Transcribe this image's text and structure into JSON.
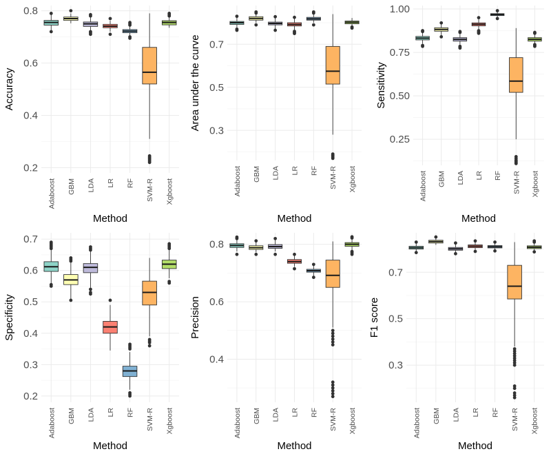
{
  "chart_data": [
    {
      "type": "boxplot",
      "ylabel": "Accuracy",
      "xlabel": "Method",
      "ylim": [
        0.18,
        0.82
      ],
      "yticks": [
        0.2,
        0.4,
        0.6,
        0.8
      ],
      "ytick_labels": [
        "0.2",
        "0.4",
        "0.6",
        "0.8"
      ],
      "categories": [
        "Adaboost",
        "GBM",
        "LDA",
        "LR",
        "RF",
        "SVM-R",
        "Xgboost"
      ],
      "series": [
        {
          "name": "Adaboost",
          "min": 0.725,
          "q1": 0.745,
          "median": 0.755,
          "q3": 0.763,
          "max": 0.785,
          "outliers": [
            0.72,
            0.79
          ]
        },
        {
          "name": "GBM",
          "min": 0.752,
          "q1": 0.763,
          "median": 0.77,
          "q3": 0.776,
          "max": 0.79,
          "outliers": [
            0.8
          ]
        },
        {
          "name": "LDA",
          "min": 0.722,
          "q1": 0.74,
          "median": 0.75,
          "q3": 0.757,
          "max": 0.776,
          "outliers": [
            0.71,
            0.715,
            0.72,
            0.78,
            0.785
          ]
        },
        {
          "name": "LR",
          "min": 0.72,
          "q1": 0.735,
          "median": 0.741,
          "q3": 0.748,
          "max": 0.762,
          "outliers": [
            0.71,
            0.77
          ]
        },
        {
          "name": "RF",
          "min": 0.705,
          "q1": 0.716,
          "median": 0.722,
          "q3": 0.728,
          "max": 0.742,
          "outliers": [
            0.695,
            0.7,
            0.745,
            0.75,
            0.755
          ]
        },
        {
          "name": "SVM-R",
          "min": 0.31,
          "q1": 0.52,
          "median": 0.565,
          "q3": 0.66,
          "max": 0.79,
          "outliers": [
            0.22,
            0.225,
            0.23,
            0.235,
            0.24,
            0.245
          ]
        },
        {
          "name": "Xgboost",
          "min": 0.735,
          "q1": 0.746,
          "median": 0.755,
          "q3": 0.762,
          "max": 0.778,
          "outliers": [
            0.78,
            0.785,
            0.79
          ]
        }
      ]
    },
    {
      "type": "boxplot",
      "ylabel": "Area under the curve",
      "xlabel": "Method",
      "ylim": [
        0.16,
        0.88
      ],
      "yticks": [
        0.3,
        0.5,
        0.7
      ],
      "ytick_labels": [
        "0.3",
        "0.5",
        "0.7"
      ],
      "categories": [
        "Adaboost",
        "GBM",
        "LDA",
        "LR",
        "RF",
        "SVM-R",
        "Xgboost"
      ],
      "series": [
        {
          "name": "Adaboost",
          "min": 0.775,
          "q1": 0.792,
          "median": 0.8,
          "q3": 0.806,
          "max": 0.825,
          "outliers": [
            0.765,
            0.77,
            0.83
          ]
        },
        {
          "name": "GBM",
          "min": 0.8,
          "q1": 0.812,
          "median": 0.82,
          "q3": 0.828,
          "max": 0.84,
          "outliers": [
            0.79,
            0.845,
            0.85
          ]
        },
        {
          "name": "LDA",
          "min": 0.772,
          "q1": 0.79,
          "median": 0.797,
          "q3": 0.803,
          "max": 0.822,
          "outliers": [
            0.765,
            0.828
          ]
        },
        {
          "name": "LR",
          "min": 0.768,
          "q1": 0.785,
          "median": 0.792,
          "q3": 0.8,
          "max": 0.818,
          "outliers": [
            0.75,
            0.755,
            0.76,
            0.825
          ]
        },
        {
          "name": "RF",
          "min": 0.8,
          "q1": 0.812,
          "median": 0.818,
          "q3": 0.825,
          "max": 0.84,
          "outliers": [
            0.79,
            0.845,
            0.85
          ]
        },
        {
          "name": "SVM-R",
          "min": 0.28,
          "q1": 0.515,
          "median": 0.575,
          "q3": 0.69,
          "max": 0.84,
          "outliers": [
            0.17,
            0.175,
            0.18,
            0.185,
            0.19
          ]
        },
        {
          "name": "Xgboost",
          "min": 0.785,
          "q1": 0.795,
          "median": 0.802,
          "q3": 0.808,
          "max": 0.822,
          "outliers": [
            0.775,
            0.78
          ]
        }
      ]
    },
    {
      "type": "boxplot",
      "ylabel": "Sensitivity",
      "xlabel": "Method",
      "ylim": [
        0.1,
        1.02
      ],
      "yticks": [
        0.25,
        0.5,
        0.75,
        1.0
      ],
      "ytick_labels": [
        "0.25",
        "0.50",
        "0.75",
        "1.00"
      ],
      "categories": [
        "Adaboost",
        "GBM",
        "LDA",
        "LR",
        "RF",
        "SVM-R",
        "Xgboost"
      ],
      "series": [
        {
          "name": "Adaboost",
          "min": 0.8,
          "q1": 0.822,
          "median": 0.832,
          "q3": 0.842,
          "max": 0.865,
          "outliers": [
            0.785,
            0.79,
            0.87,
            0.875
          ]
        },
        {
          "name": "GBM",
          "min": 0.85,
          "q1": 0.872,
          "median": 0.882,
          "q3": 0.892,
          "max": 0.915,
          "outliers": [
            0.84,
            0.92
          ]
        },
        {
          "name": "LDA",
          "min": 0.795,
          "q1": 0.815,
          "median": 0.825,
          "q3": 0.835,
          "max": 0.86,
          "outliers": [
            0.775,
            0.78,
            0.785,
            0.865,
            0.87
          ]
        },
        {
          "name": "LR",
          "min": 0.885,
          "q1": 0.903,
          "median": 0.912,
          "q3": 0.92,
          "max": 0.94,
          "outliers": [
            0.86,
            0.865,
            0.87,
            0.875,
            0.95
          ]
        },
        {
          "name": "RF",
          "min": 0.955,
          "q1": 0.962,
          "median": 0.968,
          "q3": 0.973,
          "max": 0.985,
          "outliers": [
            0.945,
            0.99
          ]
        },
        {
          "name": "SVM-R",
          "min": 0.25,
          "q1": 0.52,
          "median": 0.585,
          "q3": 0.72,
          "max": 0.89,
          "outliers": [
            0.11,
            0.115,
            0.12,
            0.125,
            0.13,
            0.14,
            0.15
          ]
        },
        {
          "name": "Xgboost",
          "min": 0.8,
          "q1": 0.815,
          "median": 0.825,
          "q3": 0.835,
          "max": 0.855,
          "outliers": [
            0.785,
            0.79,
            0.795,
            0.86,
            0.865
          ]
        }
      ]
    },
    {
      "type": "boxplot",
      "ylabel": "Specificity",
      "xlabel": "Method",
      "ylim": [
        0.18,
        0.72
      ],
      "yticks": [
        0.2,
        0.3,
        0.4,
        0.5,
        0.6,
        0.7
      ],
      "ytick_labels": [
        "0.2",
        "0.3",
        "0.4",
        "0.5",
        "0.6",
        "0.7"
      ],
      "categories": [
        "Adaboost",
        "GBM",
        "LDA",
        "LR",
        "RF",
        "SVM-R",
        "Xgboost"
      ],
      "series": [
        {
          "name": "Adaboost",
          "min": 0.56,
          "q1": 0.597,
          "median": 0.612,
          "q3": 0.628,
          "max": 0.665,
          "outliers": [
            0.55,
            0.555,
            0.67,
            0.675,
            0.68,
            0.685,
            0.69
          ]
        },
        {
          "name": "GBM",
          "min": 0.51,
          "q1": 0.555,
          "median": 0.57,
          "q3": 0.587,
          "max": 0.625,
          "outliers": [
            0.505,
            0.63,
            0.635,
            0.64
          ]
        },
        {
          "name": "LDA",
          "min": 0.545,
          "q1": 0.593,
          "median": 0.61,
          "q3": 0.622,
          "max": 0.66,
          "outliers": [
            0.525,
            0.53,
            0.54,
            0.665,
            0.67,
            0.675
          ]
        },
        {
          "name": "LR",
          "min": 0.345,
          "q1": 0.4,
          "median": 0.42,
          "q3": 0.438,
          "max": 0.49,
          "outliers": [
            0.505
          ]
        },
        {
          "name": "RF",
          "min": 0.22,
          "q1": 0.262,
          "median": 0.28,
          "q3": 0.295,
          "max": 0.34,
          "outliers": [
            0.2,
            0.205,
            0.21,
            0.35,
            0.355,
            0.36,
            0.365
          ]
        },
        {
          "name": "SVM-R",
          "min": 0.39,
          "q1": 0.49,
          "median": 0.53,
          "q3": 0.566,
          "max": 0.64,
          "outliers": [
            0.36,
            0.37,
            0.375,
            0.38
          ]
        },
        {
          "name": "Xgboost",
          "min": 0.575,
          "q1": 0.606,
          "median": 0.62,
          "q3": 0.633,
          "max": 0.665,
          "outliers": [
            0.56,
            0.565,
            0.67,
            0.675,
            0.68,
            0.685
          ]
        }
      ]
    },
    {
      "type": "boxplot",
      "ylabel": "Precision",
      "xlabel": "Method",
      "ylim": [
        0.25,
        0.84
      ],
      "yticks": [
        0.4,
        0.6,
        0.8
      ],
      "ytick_labels": [
        "0.4",
        "0.6",
        "0.8"
      ],
      "categories": [
        "Adaboost",
        "GBM",
        "LDA",
        "LR",
        "RF",
        "SVM-R",
        "Xgboost"
      ],
      "series": [
        {
          "name": "Adaboost",
          "min": 0.775,
          "q1": 0.789,
          "median": 0.796,
          "q3": 0.802,
          "max": 0.818,
          "outliers": [
            0.765,
            0.82,
            0.825
          ]
        },
        {
          "name": "GBM",
          "min": 0.772,
          "q1": 0.782,
          "median": 0.788,
          "q3": 0.795,
          "max": 0.808,
          "outliers": [
            0.765,
            0.812
          ]
        },
        {
          "name": "LDA",
          "min": 0.775,
          "q1": 0.786,
          "median": 0.792,
          "q3": 0.799,
          "max": 0.815,
          "outliers": [
            0.765,
            0.82
          ]
        },
        {
          "name": "LR",
          "min": 0.722,
          "q1": 0.734,
          "median": 0.74,
          "q3": 0.747,
          "max": 0.76,
          "outliers": [
            0.715,
            0.765
          ]
        },
        {
          "name": "RF",
          "min": 0.69,
          "q1": 0.703,
          "median": 0.708,
          "q3": 0.713,
          "max": 0.725,
          "outliers": [
            0.685,
            0.73
          ]
        },
        {
          "name": "SVM-R",
          "min": 0.51,
          "q1": 0.65,
          "median": 0.692,
          "q3": 0.745,
          "max": 0.81,
          "outliers": [
            0.27,
            0.28,
            0.29,
            0.3,
            0.31,
            0.32,
            0.45,
            0.46,
            0.47,
            0.48,
            0.49,
            0.5
          ]
        },
        {
          "name": "Xgboost",
          "min": 0.78,
          "q1": 0.793,
          "median": 0.8,
          "q3": 0.806,
          "max": 0.818,
          "outliers": [
            0.765,
            0.77,
            0.775,
            0.822,
            0.826
          ]
        }
      ]
    },
    {
      "type": "boxplot",
      "ylabel": "F1 score",
      "xlabel": "Method",
      "ylim": [
        0.14,
        0.87
      ],
      "yticks": [
        0.3,
        0.5,
        0.7
      ],
      "ytick_labels": [
        "0.3",
        "0.5",
        "0.7"
      ],
      "categories": [
        "Adaboost",
        "GBM",
        "LDA",
        "LR",
        "RF",
        "SVM-R",
        "Xgboost"
      ],
      "series": [
        {
          "name": "Adaboost",
          "min": 0.79,
          "q1": 0.8,
          "median": 0.806,
          "q3": 0.812,
          "max": 0.826,
          "outliers": [
            0.785,
            0.83
          ]
        },
        {
          "name": "GBM",
          "min": 0.818,
          "q1": 0.826,
          "median": 0.832,
          "q3": 0.838,
          "max": 0.848,
          "outliers": [
            0.852
          ]
        },
        {
          "name": "LDA",
          "min": 0.785,
          "q1": 0.795,
          "median": 0.801,
          "q3": 0.807,
          "max": 0.822,
          "outliers": [
            0.78,
            0.826
          ]
        },
        {
          "name": "LR",
          "min": 0.798,
          "q1": 0.806,
          "median": 0.812,
          "q3": 0.818,
          "max": 0.83,
          "outliers": [
            0.79,
            0.835
          ]
        },
        {
          "name": "RF",
          "min": 0.796,
          "q1": 0.805,
          "median": 0.81,
          "q3": 0.815,
          "max": 0.826,
          "outliers": [
            0.792,
            0.83
          ]
        },
        {
          "name": "SVM-R",
          "min": 0.38,
          "q1": 0.585,
          "median": 0.64,
          "q3": 0.73,
          "max": 0.83,
          "outliers": [
            0.16,
            0.17,
            0.18,
            0.2,
            0.21,
            0.3,
            0.31,
            0.32,
            0.33,
            0.34,
            0.35,
            0.36,
            0.37
          ]
        },
        {
          "name": "Xgboost",
          "min": 0.792,
          "q1": 0.802,
          "median": 0.808,
          "q3": 0.814,
          "max": 0.826,
          "outliers": [
            0.788,
            0.83,
            0.835
          ]
        }
      ]
    }
  ],
  "colors": {
    "Adaboost": "#8dd3c7",
    "GBM": "#ffffb3",
    "LDA": "#bebada",
    "LR": "#fb8072",
    "RF": "#80b1d3",
    "SVM-R": "#fdb462",
    "Xgboost": "#b3de69"
  }
}
